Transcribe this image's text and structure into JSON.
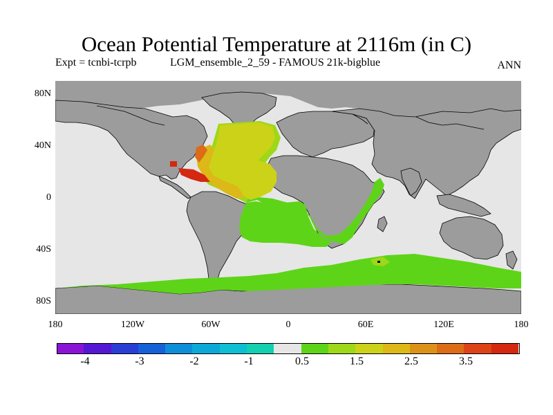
{
  "title": "Ocean Potential Temperature at 2116m (in C)",
  "subtitle_left": "Expt = tcnbi-tcrpb",
  "subtitle_mid": "LGM_ensemble_2_59 - FAMOUS 21k-bigblue",
  "subtitle_right": "ANN",
  "lat_labels": [
    "80N",
    "40N",
    "0",
    "40S",
    "80S"
  ],
  "lon_labels": [
    "180",
    "120W",
    "60W",
    "0",
    "60E",
    "120E",
    "180"
  ],
  "colors": {
    "land": "#9c9c9c",
    "ocean_neutral": "#e6e6e6",
    "coast": "#000000"
  },
  "colorbar": {
    "colors": [
      "#8a14d4",
      "#5418d4",
      "#2a3ed6",
      "#1660d8",
      "#0e8ed8",
      "#0ea8d8",
      "#0ebed2",
      "#12d0b0",
      "#e6e6e6",
      "#5ed418",
      "#9ed818",
      "#ccd218",
      "#dcb818",
      "#dc9218",
      "#dc6c18",
      "#dc4418",
      "#d42810"
    ],
    "labels": [
      "-4",
      "-3",
      "-2",
      "-1",
      "0.5",
      "1.5",
      "2.5",
      "3.5"
    ]
  }
}
